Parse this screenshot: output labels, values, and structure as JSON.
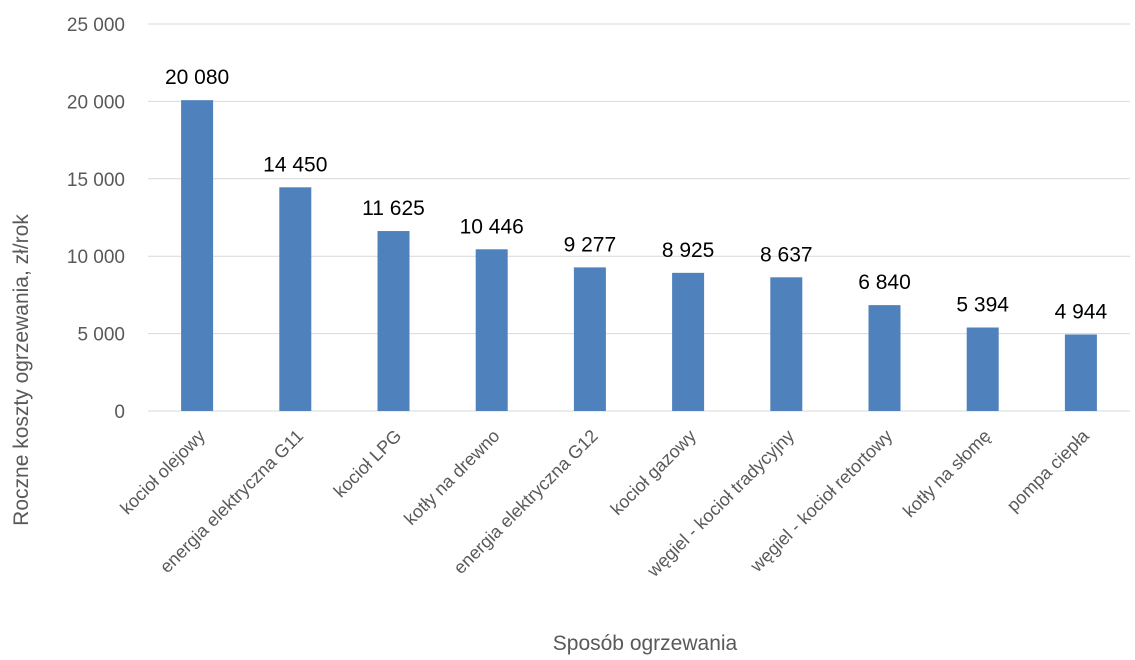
{
  "chart_data": {
    "type": "bar",
    "categories": [
      "kocioł olejowy",
      "energia elektryczna G11",
      "kocioł LPG",
      "kotły na drewno",
      "energia elektryczna G12",
      "kocioł gazowy",
      "węgiel - kocioł tradycyjny",
      "węgiel - kocioł retortowy",
      "kotły na słomę",
      "pompa ciepła"
    ],
    "values": [
      20080,
      14450,
      11625,
      10446,
      9277,
      8925,
      8637,
      6840,
      5394,
      4944
    ],
    "data_labels": [
      "20 080",
      "14 450",
      "11 625",
      "10 446",
      "9 277",
      "8 925",
      "8 637",
      "6 840",
      "5 394",
      "4 944"
    ],
    "title": "",
    "xlabel": "Sposób ogrzewania",
    "ylabel": "Roczne koszty ogrzewania, zł/rok",
    "ylim": [
      0,
      25000
    ],
    "yticks": [
      0,
      5000,
      10000,
      15000,
      20000,
      25000
    ],
    "ytick_labels": [
      "0",
      "5 000",
      "10 000",
      "15 000",
      "20 000",
      "25 000"
    ],
    "grid": true,
    "legend": "none",
    "colors": {
      "bar": "#4f81bd",
      "grid": "#d9d9d9",
      "axis_text": "#595959",
      "data_label": "#000000"
    }
  }
}
